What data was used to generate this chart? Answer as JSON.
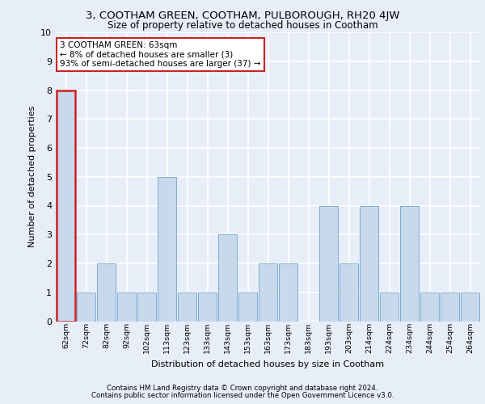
{
  "title": "3, COOTHAM GREEN, COOTHAM, PULBOROUGH, RH20 4JW",
  "subtitle": "Size of property relative to detached houses in Cootham",
  "xlabel": "Distribution of detached houses by size in Cootham",
  "ylabel": "Number of detached properties",
  "categories": [
    "62sqm",
    "72sqm",
    "82sqm",
    "92sqm",
    "102sqm",
    "113sqm",
    "123sqm",
    "133sqm",
    "143sqm",
    "153sqm",
    "163sqm",
    "173sqm",
    "183sqm",
    "193sqm",
    "203sqm",
    "214sqm",
    "224sqm",
    "234sqm",
    "244sqm",
    "254sqm",
    "264sqm"
  ],
  "values": [
    8,
    1,
    2,
    1,
    1,
    5,
    1,
    1,
    3,
    1,
    2,
    2,
    0,
    4,
    2,
    4,
    1,
    4,
    1,
    1,
    1
  ],
  "bar_color": "#c9d9ec",
  "bar_edge_color": "#7aaed4",
  "highlight_bar_index": 0,
  "highlight_edge_color": "#cc2222",
  "annotation_text": "3 COOTHAM GREEN: 63sqm\n← 8% of detached houses are smaller (3)\n93% of semi-detached houses are larger (37) →",
  "annotation_box_color": "white",
  "annotation_edge_color": "#cc2222",
  "ylim": [
    0,
    10
  ],
  "yticks": [
    0,
    1,
    2,
    3,
    4,
    5,
    6,
    7,
    8,
    9,
    10
  ],
  "background_color": "#e8eef8",
  "plot_background_color": "#e8eef8",
  "grid_color": "white",
  "footer_line1": "Contains HM Land Registry data © Crown copyright and database right 2024.",
  "footer_line2": "Contains public sector information licensed under the Open Government Licence v3.0."
}
